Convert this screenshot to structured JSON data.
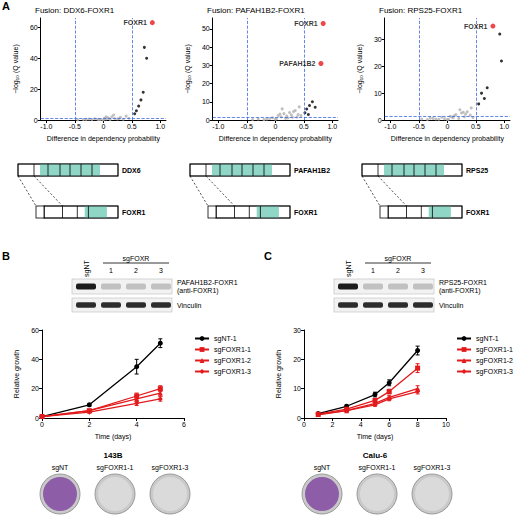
{
  "chart_data": [
    {
      "type": "scatter",
      "title": "Fusion: DDX6-FOXR1",
      "x_label": "Difference in dependency probability",
      "y_label": "−log₁₀ (Q value)",
      "xlim": [
        -1.1,
        1.1
      ],
      "xticks": [
        {
          "value": -1,
          "label": "-1.0"
        },
        -0.5,
        0,
        0.5,
        {
          "value": 1,
          "label": "1.0"
        }
      ],
      "ylim": [
        0,
        66
      ],
      "yticks": [
        0,
        20,
        40,
        60
      ],
      "grid": false,
      "reference_lines": {
        "x": [
          -0.5,
          0.5
        ],
        "y": [
          1.3
        ],
        "color": "#4169e1",
        "line_style": "dashed"
      },
      "series": [
        {
          "color": "#b0b0b0",
          "x": [
            -0.45,
            -0.3,
            -0.2,
            -0.15,
            -0.1,
            -0.05,
            0,
            0.02,
            0.05,
            0.08,
            0.1,
            0.12,
            0.15,
            0.2,
            0.25,
            0.3,
            0.35,
            0.4,
            0.45,
            -0.35,
            -0.25,
            0.18,
            0.28,
            0.05,
            -0.08
          ],
          "y": [
            0.2,
            0.4,
            0.3,
            0.8,
            0.5,
            0.3,
            0.1,
            1.2,
            0.6,
            1.5,
            0.9,
            0.4,
            2.1,
            1.0,
            0.7,
            1.8,
            0.5,
            2.5,
            1.1,
            0.3,
            0.6,
            3.2,
            0.9,
            2.0,
            0.4
          ]
        },
        {
          "color": "#000000",
          "x": [
            0.72,
            0.76,
            0.7,
            0.66,
            0.62,
            0.58,
            0.55
          ],
          "y": [
            47,
            40,
            18,
            13,
            9,
            6,
            4
          ]
        },
        {
          "color": "#e8191c",
          "x": [
            0.86
          ],
          "y": [
            63
          ],
          "labels": [
            "FOXR1"
          ]
        }
      ]
    },
    {
      "type": "scatter",
      "title": "Fusion: PAFAH1B2-FOXR1",
      "x_label": "Difference in dependency probability",
      "y_label": "−log₁₀ (Q value)",
      "xlim": [
        -1.1,
        1.1
      ],
      "xticks": [
        {
          "value": -1,
          "label": "-1.0"
        },
        -0.5,
        0,
        0.5,
        {
          "value": 1,
          "label": "1.0"
        }
      ],
      "ylim": [
        0,
        56
      ],
      "yticks": [
        0,
        10,
        20,
        30,
        40,
        50
      ],
      "grid": false,
      "reference_lines": {
        "x": [
          -0.5,
          0.5
        ],
        "y": [
          1.3
        ],
        "color": "#4169e1",
        "line_style": "dashed"
      },
      "series": [
        {
          "color": "#b0b0b0",
          "x": [
            -0.4,
            -0.3,
            -0.2,
            -0.1,
            -0.05,
            0,
            0.05,
            0.1,
            0.15,
            0.2,
            0.25,
            0.3,
            0.35,
            0.4,
            0.45,
            0.02,
            0.12,
            0.22,
            0.32,
            0.42,
            -0.15,
            0.08,
            0.18,
            0.28,
            0.38
          ],
          "y": [
            0.3,
            0.5,
            0.2,
            0.8,
            1.2,
            0.4,
            2.5,
            1.8,
            3.5,
            2.2,
            4.1,
            1.5,
            5.2,
            3.0,
            2.4,
            0.7,
            6.1,
            1.1,
            4.6,
            7.2,
            0.5,
            3.3,
            0.9,
            2.8,
            1.6
          ]
        },
        {
          "color": "#000000",
          "x": [
            0.55,
            0.6,
            0.65,
            0.52,
            0.7,
            0.58
          ],
          "y": [
            6,
            8,
            10,
            4,
            7,
            3
          ]
        },
        {
          "color": "#e8191c",
          "x": [
            0.84,
            0.8
          ],
          "y": [
            53,
            31
          ],
          "labels": [
            "FOXR1",
            "PAFAH1B2"
          ]
        }
      ]
    },
    {
      "type": "scatter",
      "title": "Fusion: RPS25-FOXR1",
      "x_label": "Difference in dependency probability",
      "y_label": "−log₁₀ (Q value)",
      "xlim": [
        -1.1,
        1.1
      ],
      "xticks": [
        {
          "value": -1,
          "label": "-1.0"
        },
        -0.5,
        0,
        0.5,
        {
          "value": 1,
          "label": "1.0"
        }
      ],
      "ylim": [
        0,
        38
      ],
      "yticks": [
        0,
        10,
        20,
        30
      ],
      "grid": false,
      "reference_lines": {
        "x": [
          -0.5,
          0.5
        ],
        "y": [
          1.3
        ],
        "color": "#4169e1",
        "line_style": "dashed"
      },
      "series": [
        {
          "color": "#b0b0b0",
          "x": [
            -0.45,
            -0.35,
            -0.25,
            -0.15,
            -0.1,
            -0.05,
            0,
            0.05,
            0.1,
            0.15,
            0.2,
            0.25,
            0.3,
            0.35,
            0.4,
            0.45,
            -0.3,
            0.02,
            0.12,
            0.22,
            0.32,
            0.42,
            -0.2,
            0.08,
            0.28
          ],
          "y": [
            0.4,
            0.2,
            0.6,
            0.3,
            1.0,
            0.5,
            0.2,
            1.4,
            0.8,
            2.0,
            0.6,
            2.6,
            1.2,
            3.1,
            1.8,
            0.9,
            0.7,
            0.3,
            1.6,
            3.8,
            2.2,
            4.5,
            0.4,
            1.1,
            2.9
          ]
        },
        {
          "color": "#000000",
          "x": [
            0.92,
            0.95,
            0.7,
            0.6,
            0.55,
            0.65
          ],
          "y": [
            32,
            22,
            12,
            10,
            6,
            8
          ]
        },
        {
          "color": "#e8191c",
          "x": [
            0.8
          ],
          "y": [
            35
          ],
          "labels": [
            "FOXR1"
          ]
        }
      ]
    },
    {
      "type": "line",
      "x_label": "Time (days)",
      "y_label": "Relative growth",
      "x": [
        0,
        2,
        4,
        5
      ],
      "xlim": [
        0,
        6
      ],
      "xticks": [
        0,
        2,
        4,
        6
      ],
      "ylim": [
        0,
        60
      ],
      "yticks": [
        0,
        20,
        40,
        60
      ],
      "grid": false,
      "legend": "right",
      "series": [
        {
          "name": "sgNT-1",
          "color": "#000000",
          "marker": "circle",
          "values": [
            1,
            9,
            35,
            51
          ],
          "errors": [
            0.2,
            1,
            5,
            3
          ]
        },
        {
          "name": "sgFOXR1-1",
          "color": "#e31a1c",
          "marker": "square",
          "values": [
            1,
            5,
            15,
            20
          ],
          "errors": [
            0.2,
            0.8,
            2,
            2
          ]
        },
        {
          "name": "sgFOXR1-2",
          "color": "#e31a1c",
          "marker": "triangle",
          "values": [
            1,
            5,
            13,
            17
          ],
          "errors": [
            0.2,
            0.7,
            2,
            2
          ]
        },
        {
          "name": "sgFOXR1-3",
          "color": "#e31a1c",
          "marker": "diamond",
          "values": [
            1,
            4,
            10,
            13
          ],
          "errors": [
            0.2,
            0.5,
            1.5,
            1.5
          ]
        }
      ]
    },
    {
      "type": "line",
      "x_label": "Time (days)",
      "y_label": "Relative growth",
      "x": [
        1,
        3,
        5,
        6,
        8
      ],
      "xlim": [
        0,
        10
      ],
      "xticks": [
        0,
        2,
        4,
        6,
        8,
        10
      ],
      "ylim": [
        0,
        30
      ],
      "yticks": [
        0,
        10,
        20,
        30
      ],
      "grid": false,
      "legend": "right",
      "series": [
        {
          "name": "sgNT-1",
          "color": "#000000",
          "marker": "circle",
          "values": [
            1.5,
            4,
            8,
            12,
            23
          ],
          "errors": [
            0.2,
            0.4,
            0.8,
            1,
            1.5
          ]
        },
        {
          "name": "sgFOXR1-1",
          "color": "#e31a1c",
          "marker": "square",
          "values": [
            1.3,
            3,
            6,
            9,
            17
          ],
          "errors": [
            0.2,
            0.3,
            0.6,
            0.8,
            1.5
          ]
        },
        {
          "name": "sgFOXR1-2",
          "color": "#e31a1c",
          "marker": "triangle",
          "values": [
            1.2,
            2.5,
            5,
            7,
            10
          ],
          "errors": [
            0.2,
            0.3,
            0.5,
            0.6,
            1
          ]
        },
        {
          "name": "sgFOXR1-3",
          "color": "#e31a1c",
          "marker": "diamond",
          "values": [
            1.1,
            2.5,
            4.5,
            6.5,
            9
          ],
          "errors": [
            0.2,
            0.3,
            0.5,
            0.6,
            0.8
          ]
        }
      ]
    }
  ],
  "figure": {
    "panel_letters": [
      "A",
      "B",
      "C"
    ],
    "schematics": [
      {
        "partner": "DDX6",
        "target": "FOXR1"
      },
      {
        "partner": "PAFAH1B2",
        "target": "FOXR1"
      },
      {
        "partner": "RPS25",
        "target": "FOXR1"
      }
    ],
    "blots": [
      {
        "control": "sgNT",
        "group": "sgFOXR",
        "lanes": [
          "1",
          "2",
          "3"
        ],
        "rows": [
          {
            "label": [
              "PAFAH1B2-FOXR1",
              "(anti-FOXR1)"
            ]
          },
          {
            "label": [
              "Vinculin"
            ]
          }
        ]
      },
      {
        "control": "sgNT",
        "group": "sgFOXR",
        "lanes": [
          "1",
          "2",
          "3"
        ],
        "rows": [
          {
            "label": [
              "RPS25-FOXR1",
              "(anti-FOXR1)"
            ]
          },
          {
            "label": [
              "Vinculin"
            ]
          }
        ]
      }
    ],
    "plates": [
      {
        "cell_line": "143B",
        "wells": [
          {
            "label": "sgNT",
            "color": "#8e5da8"
          },
          {
            "label": "sgFOXR1-1",
            "color": "#dadada"
          },
          {
            "label": "sgFOXR1-3",
            "color": "#dadada"
          }
        ]
      },
      {
        "cell_line": "Calu-6",
        "wells": [
          {
            "label": "sgNT",
            "color": "#8e5da8"
          },
          {
            "label": "sgFOXR1-1",
            "color": "#dadada"
          },
          {
            "label": "sgFOXR1-3",
            "color": "#dadada"
          }
        ]
      }
    ]
  }
}
